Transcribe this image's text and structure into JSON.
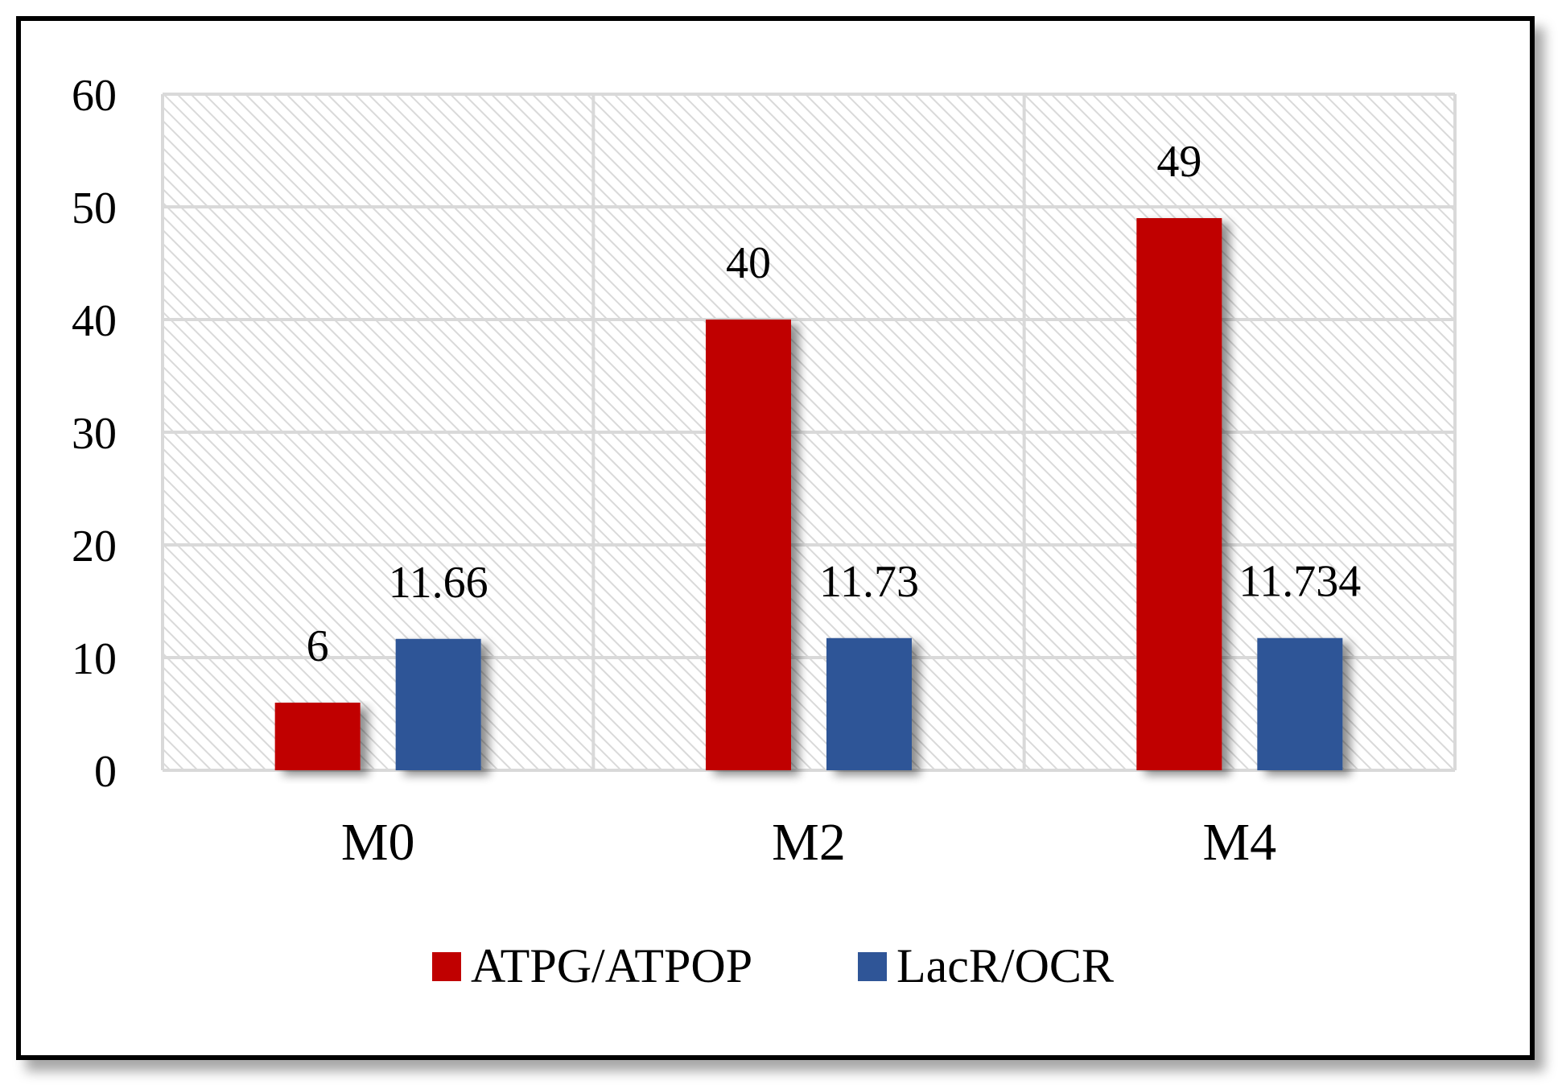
{
  "chart_data": {
    "type": "bar",
    "title": "",
    "xlabel": "",
    "ylabel": "",
    "categories": [
      "M0",
      "M2",
      "M4"
    ],
    "series": [
      {
        "name": "ATPG/ATPOP",
        "values": [
          6,
          40,
          49
        ],
        "labels": [
          "6",
          "40",
          "49"
        ],
        "color": "#C00000"
      },
      {
        "name": "LacR/OCR",
        "values": [
          11.66,
          11.73,
          11.734
        ],
        "labels": [
          "11.66",
          "11.73",
          "11.734"
        ],
        "color": "#2F5597"
      }
    ],
    "ylim": [
      0,
      60
    ],
    "yticks": [
      0,
      10,
      20,
      30,
      40,
      50,
      60
    ],
    "grid": true,
    "legend": "bottom",
    "background_pattern": "diagonal-hatch"
  }
}
